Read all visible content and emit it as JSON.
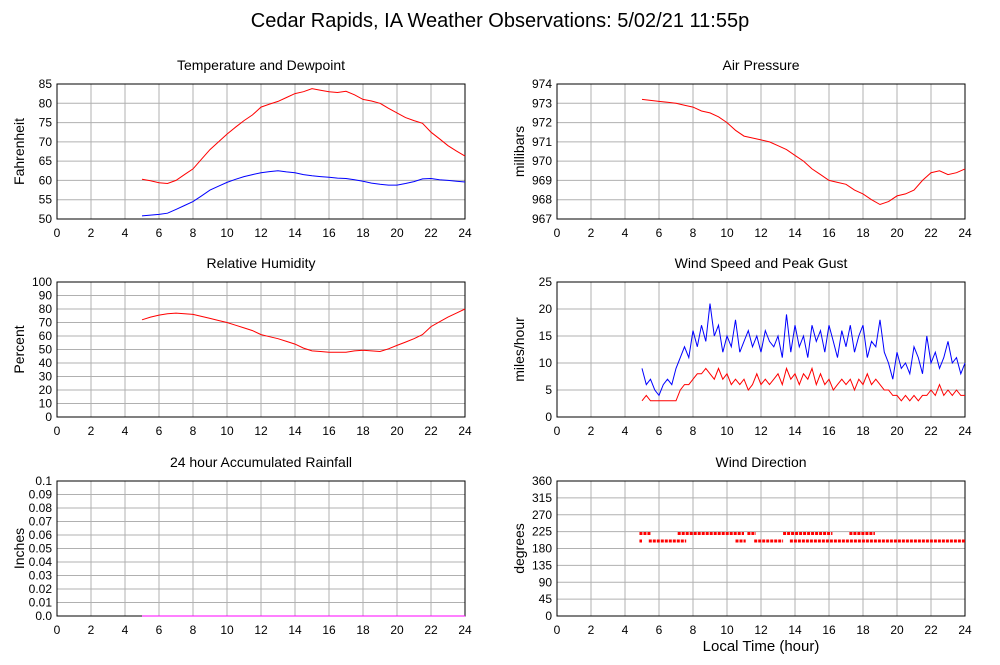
{
  "page": {
    "title": "Cedar Rapids, IA Weather Observations: 5/02/21 11:55p"
  },
  "chart_data": [
    {
      "id": "temp",
      "type": "line",
      "title": "Temperature and Dewpoint",
      "ylabel": "Fahrenheit",
      "xlabel": "",
      "xlim": [
        0,
        24
      ],
      "ylim": [
        50,
        85
      ],
      "x_ticks": [
        0,
        2,
        4,
        6,
        8,
        10,
        12,
        14,
        16,
        18,
        20,
        22,
        24
      ],
      "y_ticks": [
        50,
        55,
        60,
        65,
        70,
        75,
        80,
        85
      ],
      "y_tick_labels": [
        "50",
        "55",
        "60",
        "65",
        "70",
        "75",
        "80",
        "85"
      ],
      "grid": true,
      "series": [
        {
          "color": "#ff0000",
          "x": [
            5.0,
            5.5,
            6.0,
            6.5,
            7.0,
            7.5,
            8.0,
            8.5,
            9.0,
            9.5,
            10.0,
            10.5,
            11.0,
            11.5,
            12.0,
            12.5,
            13.0,
            13.5,
            14.0,
            14.5,
            15.0,
            15.5,
            16.0,
            16.5,
            17.0,
            17.5,
            18.0,
            18.5,
            19.0,
            19.5,
            20.0,
            20.5,
            21.0,
            21.5,
            22.0,
            22.5,
            23.0,
            23.5,
            24.0
          ],
          "y": [
            60.3,
            59.9,
            59.4,
            59.2,
            60.0,
            61.5,
            63.0,
            65.5,
            68.0,
            70.0,
            72.0,
            73.8,
            75.5,
            77.0,
            79.0,
            79.8,
            80.5,
            81.5,
            82.5,
            83.0,
            83.8,
            83.4,
            83.0,
            82.8,
            83.1,
            82.2,
            81.0,
            80.6,
            80.0,
            78.7,
            77.5,
            76.3,
            75.5,
            74.8,
            72.5,
            70.8,
            69.0,
            67.6,
            66.3
          ]
        },
        {
          "color": "#0000ff",
          "x": [
            5.0,
            5.5,
            6.0,
            6.5,
            7.0,
            7.5,
            8.0,
            8.5,
            9.0,
            9.5,
            10.0,
            10.5,
            11.0,
            11.5,
            12.0,
            12.5,
            13.0,
            13.5,
            14.0,
            14.5,
            15.0,
            15.5,
            16.0,
            16.5,
            17.0,
            17.5,
            18.0,
            18.5,
            19.0,
            19.5,
            20.0,
            20.5,
            21.0,
            21.5,
            22.0,
            22.5,
            23.0,
            23.5,
            24.0
          ],
          "y": [
            50.8,
            51.0,
            51.2,
            51.5,
            52.5,
            53.5,
            54.5,
            56.0,
            57.5,
            58.5,
            59.5,
            60.3,
            61.0,
            61.5,
            62.0,
            62.3,
            62.5,
            62.2,
            62.0,
            61.5,
            61.2,
            61.0,
            60.8,
            60.6,
            60.5,
            60.2,
            59.8,
            59.3,
            59.0,
            58.8,
            58.8,
            59.2,
            59.7,
            60.4,
            60.5,
            60.2,
            60.0,
            59.8,
            59.6
          ]
        }
      ]
    },
    {
      "id": "pressure",
      "type": "line",
      "title": "Air Pressure",
      "ylabel": "millibars",
      "xlabel": "",
      "xlim": [
        0,
        24
      ],
      "ylim": [
        967,
        974
      ],
      "x_ticks": [
        0,
        2,
        4,
        6,
        8,
        10,
        12,
        14,
        16,
        18,
        20,
        22,
        24
      ],
      "y_ticks": [
        967,
        968,
        969,
        970,
        971,
        972,
        973,
        974
      ],
      "y_tick_labels": [
        "967",
        "968",
        "969",
        "970",
        "971",
        "972",
        "973",
        "974"
      ],
      "grid": true,
      "series": [
        {
          "color": "#ff0000",
          "x": [
            5.0,
            5.5,
            6.0,
            6.5,
            7.0,
            7.5,
            8.0,
            8.5,
            9.0,
            9.5,
            10.0,
            10.5,
            11.0,
            11.5,
            12.0,
            12.5,
            13.0,
            13.5,
            14.0,
            14.5,
            15.0,
            15.5,
            16.0,
            16.5,
            17.0,
            17.5,
            18.0,
            18.5,
            19.0,
            19.5,
            20.0,
            20.5,
            21.0,
            21.5,
            22.0,
            22.5,
            23.0,
            23.5,
            24.0
          ],
          "y": [
            973.2,
            973.15,
            973.1,
            973.05,
            973.0,
            972.9,
            972.8,
            972.6,
            972.5,
            972.3,
            972.0,
            971.6,
            971.3,
            971.2,
            971.1,
            971.0,
            970.8,
            970.6,
            970.3,
            970.0,
            969.6,
            969.3,
            969.0,
            968.9,
            968.8,
            968.5,
            968.3,
            968.0,
            967.75,
            967.9,
            968.2,
            968.3,
            968.5,
            969.0,
            969.4,
            969.5,
            969.3,
            969.4,
            969.6
          ]
        }
      ]
    },
    {
      "id": "humidity",
      "type": "line",
      "title": "Relative Humidity",
      "ylabel": "Percent",
      "xlabel": "",
      "xlim": [
        0,
        24
      ],
      "ylim": [
        0,
        100
      ],
      "x_ticks": [
        0,
        2,
        4,
        6,
        8,
        10,
        12,
        14,
        16,
        18,
        20,
        22,
        24
      ],
      "y_ticks": [
        0,
        10,
        20,
        30,
        40,
        50,
        60,
        70,
        80,
        90,
        100
      ],
      "y_tick_labels": [
        "0",
        "10",
        "20",
        "30",
        "40",
        "50",
        "60",
        "70",
        "80",
        "90",
        "100"
      ],
      "grid": true,
      "series": [
        {
          "color": "#ff0000",
          "x": [
            5.0,
            5.5,
            6.0,
            6.5,
            7.0,
            7.5,
            8.0,
            8.5,
            9.0,
            9.5,
            10.0,
            10.5,
            11.0,
            11.5,
            12.0,
            12.5,
            13.0,
            13.5,
            14.0,
            14.5,
            15.0,
            15.5,
            16.0,
            16.5,
            17.0,
            17.5,
            18.0,
            18.5,
            19.0,
            19.5,
            20.0,
            20.5,
            21.0,
            21.5,
            22.0,
            22.5,
            23.0,
            23.5,
            24.0
          ],
          "y": [
            72,
            74,
            75.5,
            76.5,
            77,
            76.5,
            76,
            74.5,
            73,
            71.5,
            70,
            68,
            66,
            64,
            61,
            59.5,
            58,
            56,
            54,
            51,
            49,
            48.5,
            48,
            48,
            48,
            49,
            49.5,
            49,
            48.5,
            50.5,
            53,
            55.5,
            58,
            61,
            67,
            70.5,
            74,
            77,
            80
          ]
        }
      ]
    },
    {
      "id": "wind",
      "type": "line",
      "title": "Wind Speed and Peak Gust",
      "ylabel": "miles/hour",
      "xlabel": "",
      "xlim": [
        0,
        24
      ],
      "ylim": [
        0,
        25
      ],
      "x_ticks": [
        0,
        2,
        4,
        6,
        8,
        10,
        12,
        14,
        16,
        18,
        20,
        22,
        24
      ],
      "y_ticks": [
        0,
        5,
        10,
        15,
        20,
        25
      ],
      "y_tick_labels": [
        "0",
        "5",
        "10",
        "15",
        "20",
        "25"
      ],
      "grid": true,
      "series": [
        {
          "color": "#0000ff",
          "x": [
            5.0,
            5.25,
            5.5,
            5.75,
            6.0,
            6.25,
            6.5,
            6.75,
            7.0,
            7.25,
            7.5,
            7.75,
            8.0,
            8.25,
            8.5,
            8.75,
            9.0,
            9.25,
            9.5,
            9.75,
            10.0,
            10.25,
            10.5,
            10.75,
            11.0,
            11.25,
            11.5,
            11.75,
            12.0,
            12.25,
            12.5,
            12.75,
            13.0,
            13.25,
            13.5,
            13.75,
            14.0,
            14.25,
            14.5,
            14.75,
            15.0,
            15.25,
            15.5,
            15.75,
            16.0,
            16.25,
            16.5,
            16.75,
            17.0,
            17.25,
            17.5,
            17.75,
            18.0,
            18.25,
            18.5,
            18.75,
            19.0,
            19.25,
            19.5,
            19.75,
            20.0,
            20.25,
            20.5,
            20.75,
            21.0,
            21.25,
            21.5,
            21.75,
            22.0,
            22.25,
            22.5,
            22.75,
            23.0,
            23.25,
            23.5,
            23.75,
            24.0
          ],
          "y": [
            9,
            6,
            7,
            5,
            4,
            6,
            7,
            6,
            9,
            11,
            13,
            11,
            16,
            13,
            17,
            14,
            21,
            15,
            17,
            12,
            15,
            13,
            18,
            12,
            14,
            16,
            13,
            15,
            12,
            16,
            14,
            13,
            15,
            11,
            19,
            12,
            17,
            13,
            15,
            11,
            17,
            14,
            16,
            12,
            17,
            14,
            11,
            16,
            13,
            17,
            12,
            15,
            17,
            11,
            14,
            13,
            18,
            12,
            10,
            7,
            12,
            9,
            10,
            8,
            13,
            11,
            8,
            15,
            10,
            12,
            9,
            11,
            14,
            10,
            11,
            8,
            10
          ]
        },
        {
          "color": "#ff0000",
          "x": [
            5.0,
            5.25,
            5.5,
            5.75,
            6.0,
            6.25,
            6.5,
            6.75,
            7.0,
            7.25,
            7.5,
            7.75,
            8.0,
            8.25,
            8.5,
            8.75,
            9.0,
            9.25,
            9.5,
            9.75,
            10.0,
            10.25,
            10.5,
            10.75,
            11.0,
            11.25,
            11.5,
            11.75,
            12.0,
            12.25,
            12.5,
            12.75,
            13.0,
            13.25,
            13.5,
            13.75,
            14.0,
            14.25,
            14.5,
            14.75,
            15.0,
            15.25,
            15.5,
            15.75,
            16.0,
            16.25,
            16.5,
            16.75,
            17.0,
            17.25,
            17.5,
            17.75,
            18.0,
            18.25,
            18.5,
            18.75,
            19.0,
            19.25,
            19.5,
            19.75,
            20.0,
            20.25,
            20.5,
            20.75,
            21.0,
            21.25,
            21.5,
            21.75,
            22.0,
            22.25,
            22.5,
            22.75,
            23.0,
            23.25,
            23.5,
            23.75,
            24.0
          ],
          "y": [
            3,
            4,
            3,
            3,
            3,
            3,
            3,
            3,
            3,
            5,
            6,
            6,
            7,
            8,
            8,
            9,
            8,
            7,
            9,
            7,
            8,
            6,
            7,
            6,
            7,
            5,
            6,
            8,
            6,
            7,
            6,
            7,
            8,
            6,
            9,
            7,
            8,
            6,
            8,
            7,
            9,
            6,
            8,
            6,
            7,
            5,
            6,
            7,
            6,
            7,
            5,
            7,
            6,
            8,
            6,
            7,
            6,
            5,
            5,
            4,
            4,
            3,
            4,
            3,
            4,
            3,
            4,
            4,
            5,
            4,
            6,
            4,
            5,
            4,
            5,
            4,
            4
          ]
        }
      ]
    },
    {
      "id": "rain",
      "type": "line",
      "title": "24 hour Accumulated Rainfall",
      "ylabel": "Inches",
      "xlabel": "",
      "xlim": [
        0,
        24
      ],
      "ylim": [
        0,
        0.1
      ],
      "x_ticks": [
        0,
        2,
        4,
        6,
        8,
        10,
        12,
        14,
        16,
        18,
        20,
        22,
        24
      ],
      "y_ticks": [
        0,
        0.01,
        0.02,
        0.03,
        0.04,
        0.05,
        0.06,
        0.07,
        0.08,
        0.09,
        0.1
      ],
      "y_tick_labels": [
        "0.0",
        "0.01",
        "0.02",
        "0.03",
        "0.04",
        "0.05",
        "0.06",
        "0.07",
        "0.08",
        "0.09",
        "0.1"
      ],
      "grid": true,
      "series": [
        {
          "color": "#ff00ff",
          "x": [
            5.0,
            24.0
          ],
          "y": [
            0,
            0
          ]
        }
      ]
    },
    {
      "id": "direction",
      "type": "scatter",
      "title": "Wind Direction",
      "ylabel": "degrees",
      "xlabel": "Local Time (hour)",
      "xlim": [
        0,
        24
      ],
      "ylim": [
        0,
        360
      ],
      "x_ticks": [
        0,
        2,
        4,
        6,
        8,
        10,
        12,
        14,
        16,
        18,
        20,
        22,
        24
      ],
      "y_ticks": [
        0,
        45,
        90,
        135,
        180,
        225,
        270,
        315,
        360
      ],
      "y_tick_labels": [
        "0",
        "45",
        "90",
        "135",
        "180",
        "225",
        "270",
        "315",
        "360"
      ],
      "grid": true,
      "series": [
        {
          "color": "#ff0000",
          "segments": [
            {
              "y": 220,
              "x0": 4.85,
              "x1": 5.5
            },
            {
              "y": 200,
              "x0": 4.85,
              "x1": 5.0
            },
            {
              "y": 200,
              "x0": 5.4,
              "x1": 7.6
            },
            {
              "y": 220,
              "x0": 7.1,
              "x1": 11.0
            },
            {
              "y": 200,
              "x0": 10.5,
              "x1": 11.1
            },
            {
              "y": 220,
              "x0": 11.2,
              "x1": 11.7
            },
            {
              "y": 200,
              "x0": 11.6,
              "x1": 13.3
            },
            {
              "y": 220,
              "x0": 13.3,
              "x1": 16.2
            },
            {
              "y": 200,
              "x0": 13.7,
              "x1": 24.0
            },
            {
              "y": 220,
              "x0": 17.2,
              "x1": 18.7
            }
          ]
        }
      ]
    }
  ]
}
